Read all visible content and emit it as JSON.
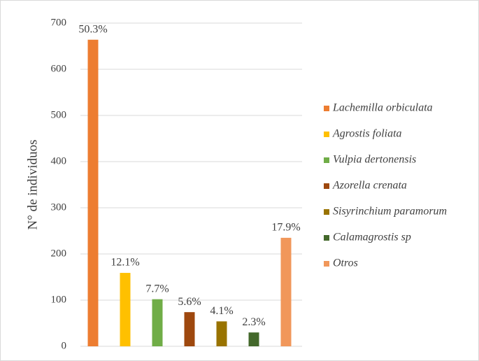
{
  "chart_data": {
    "type": "bar",
    "y_axis_label": "N° de individuos",
    "ylim": [
      0,
      700
    ],
    "yticks": [
      0,
      100,
      200,
      300,
      400,
      500,
      600,
      700
    ],
    "grid": true,
    "legend": "right",
    "series": [
      {
        "name": "Lachemilla orbiculata",
        "color": "#ED7D31",
        "values": [
          664
        ],
        "label": "50.3%"
      },
      {
        "name": "Agrostis foliata",
        "color": "#FFC000",
        "values": [
          159
        ],
        "label": "12.1%"
      },
      {
        "name": "Vulpia dertonensis",
        "color": "#70AD47",
        "values": [
          102
        ],
        "label": "7.7%"
      },
      {
        "name": "Azorella crenata",
        "color": "#9E480E",
        "values": [
          74
        ],
        "label": "5.6%"
      },
      {
        "name": "Sisyrinchium paramorum",
        "color": "#997300",
        "values": [
          54
        ],
        "label": "4.1%"
      },
      {
        "name": "Calamagrostis sp",
        "color": "#43682B",
        "values": [
          30
        ],
        "label": "2.3%"
      },
      {
        "name": "Otros",
        "color": "#F1975A",
        "values": [
          235
        ],
        "label": "17.9%"
      }
    ]
  }
}
